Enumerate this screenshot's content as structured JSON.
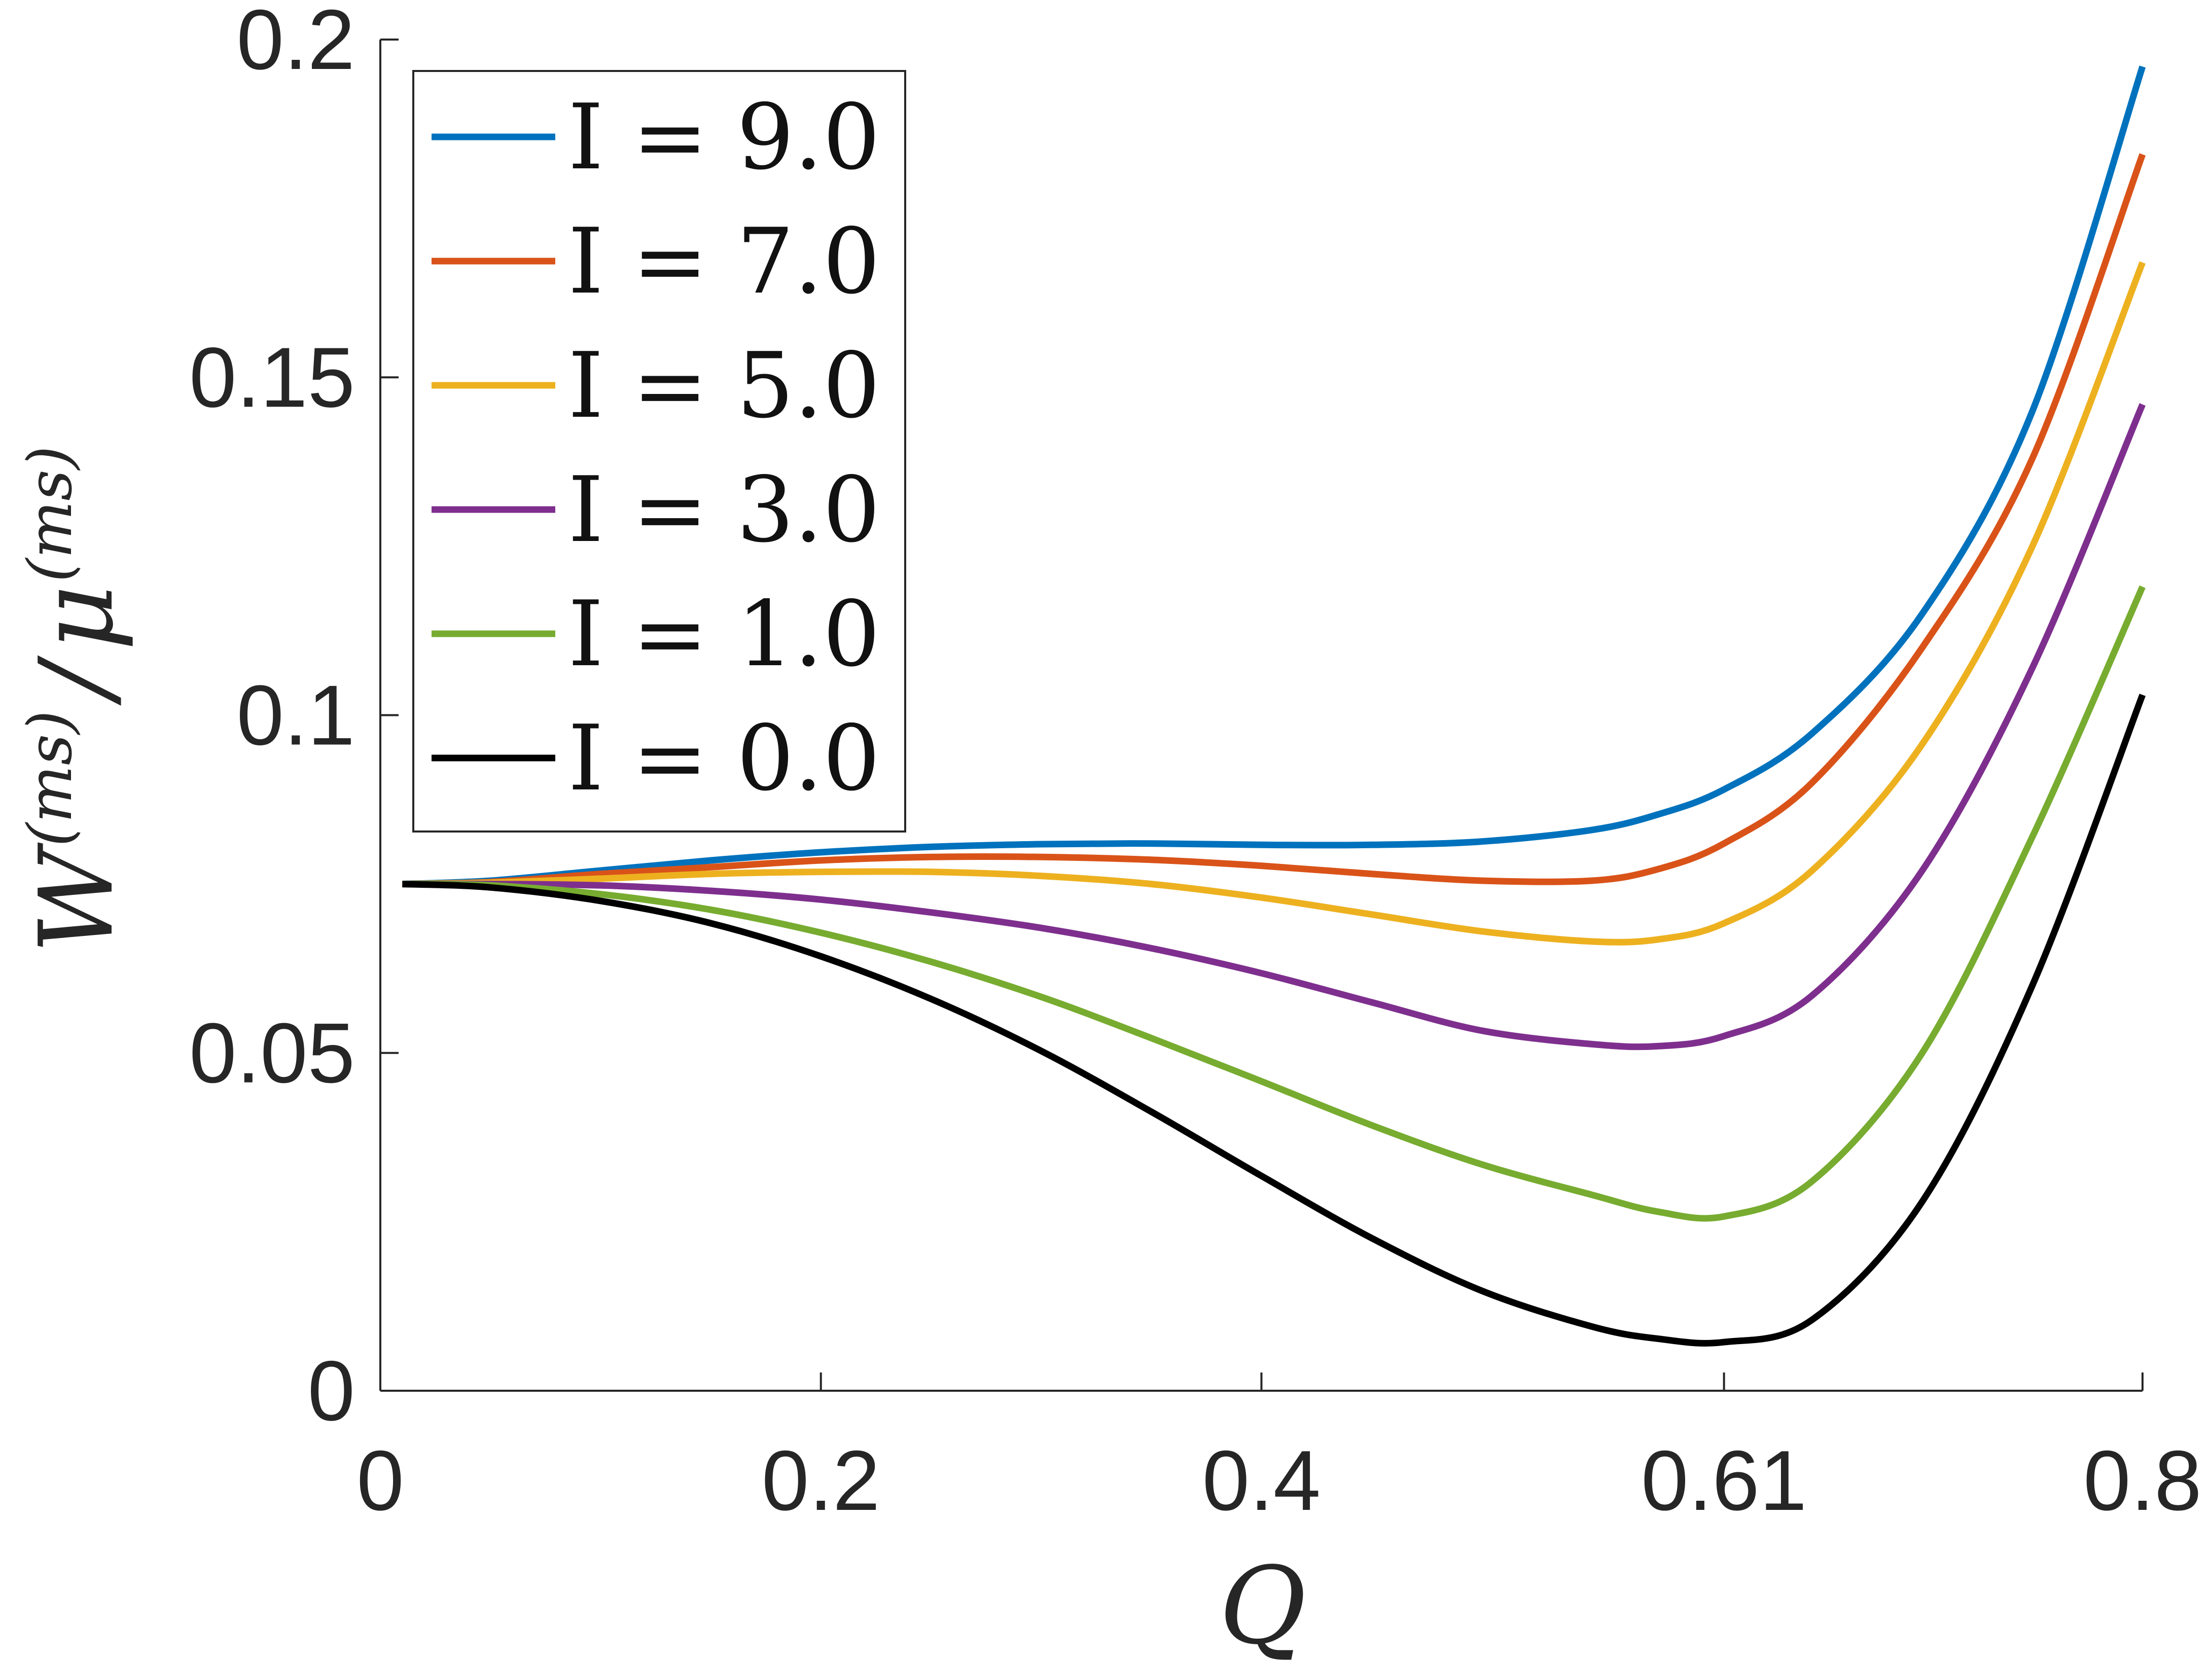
{
  "chart_data": {
    "type": "line",
    "title": "",
    "xlabel": "Q",
    "ylabel": {
      "main": "W",
      "sup1": "(ms)",
      "slash": "/",
      "mu": "μ",
      "sup2": "(ms)"
    },
    "xlim": [
      0,
      0.8
    ],
    "ylim": [
      0,
      0.2
    ],
    "xticks": [
      0,
      0.2,
      0.4,
      0.61,
      0.8
    ],
    "xtick_labels": [
      "0",
      "0.2",
      "0.4",
      "0.61",
      "0.8"
    ],
    "yticks": [
      0,
      0.05,
      0.1,
      0.15,
      0.2
    ],
    "ytick_labels": [
      "0",
      "0.05",
      "0.1",
      "0.15",
      "0.2"
    ],
    "grid": false,
    "legend_position": "top-left",
    "x": [
      0.01,
      0.05,
      0.1,
      0.15,
      0.2,
      0.25,
      0.3,
      0.35,
      0.4,
      0.45,
      0.5,
      0.55,
      0.58,
      0.61,
      0.65,
      0.7,
      0.75,
      0.8
    ],
    "series": [
      {
        "name": "I = 9.0",
        "color": "#0072BD",
        "values": [
          0.075,
          0.0755,
          0.077,
          0.0785,
          0.0797,
          0.0805,
          0.0809,
          0.081,
          0.0808,
          0.0808,
          0.0813,
          0.083,
          0.0853,
          0.089,
          0.0973,
          0.115,
          0.145,
          0.196
        ]
      },
      {
        "name": "I = 7.0",
        "color": "#D95319",
        "values": [
          0.075,
          0.0753,
          0.0765,
          0.0775,
          0.0785,
          0.079,
          0.079,
          0.0786,
          0.0777,
          0.0765,
          0.0755,
          0.0755,
          0.0772,
          0.081,
          0.09,
          0.11,
          0.138,
          0.183
        ]
      },
      {
        "name": "I = 5.0",
        "color": "#EDB120",
        "values": [
          0.075,
          0.0752,
          0.0758,
          0.0765,
          0.0768,
          0.0768,
          0.0762,
          0.075,
          0.073,
          0.0705,
          0.068,
          0.0665,
          0.0668,
          0.0692,
          0.077,
          0.0957,
          0.125,
          0.167
        ]
      },
      {
        "name": "I = 3.0",
        "color": "#7E2F8E",
        "values": [
          0.075,
          0.075,
          0.0748,
          0.074,
          0.0727,
          0.0708,
          0.0685,
          0.0655,
          0.0618,
          0.0575,
          0.0533,
          0.0513,
          0.051,
          0.0525,
          0.0585,
          0.077,
          0.107,
          0.146
        ]
      },
      {
        "name": "I = 1.0",
        "color": "#77AC30",
        "values": [
          0.075,
          0.0748,
          0.0735,
          0.0712,
          0.0678,
          0.0635,
          0.0583,
          0.0522,
          0.0458,
          0.0393,
          0.0335,
          0.029,
          0.0265,
          0.0258,
          0.031,
          0.05,
          0.082,
          0.119
        ]
      },
      {
        "name": "I = 0.0",
        "color": "#000000",
        "values": [
          0.075,
          0.0745,
          0.0725,
          0.0692,
          0.0643,
          0.058,
          0.0503,
          0.0413,
          0.0318,
          0.0226,
          0.0148,
          0.0095,
          0.0077,
          0.0072,
          0.0105,
          0.028,
          0.06,
          0.103
        ]
      }
    ]
  }
}
